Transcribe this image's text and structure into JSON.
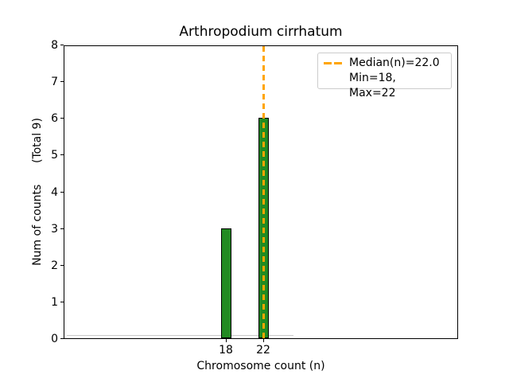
{
  "figure": {
    "title": "Arthropodium cirrhatum",
    "xlabel": "Chromosome count (n)",
    "ylabel": "Num of counts      (Total 9)",
    "background": "#ffffff"
  },
  "chart_data": {
    "type": "bar",
    "title": "Arthropodium cirrhatum",
    "xlabel": "Chromosome count (n)",
    "ylabel": "Num of counts      (Total 9)",
    "categories": [
      18,
      22
    ],
    "values": [
      3,
      6
    ],
    "total_counts": 9,
    "median": 22.0,
    "min": 18,
    "max": 22,
    "xticks": [
      "18",
      "22"
    ],
    "yticks": [
      "0",
      "1",
      "2",
      "3",
      "4",
      "5",
      "6",
      "7",
      "8"
    ],
    "ylim": [
      0,
      8
    ],
    "bin_width": 1,
    "empty_bins_extent": [
      0.9,
      25.2
    ],
    "grid": false,
    "bar_color": "#228B22",
    "bar_edge_color": "#000000",
    "median_line_color": "#FFA500",
    "median_line_style": "dashed",
    "legend_position": "upper right"
  },
  "legend": {
    "median_label": "Median(n)=22.0",
    "minmax_label": "Min=18, Max=22"
  }
}
